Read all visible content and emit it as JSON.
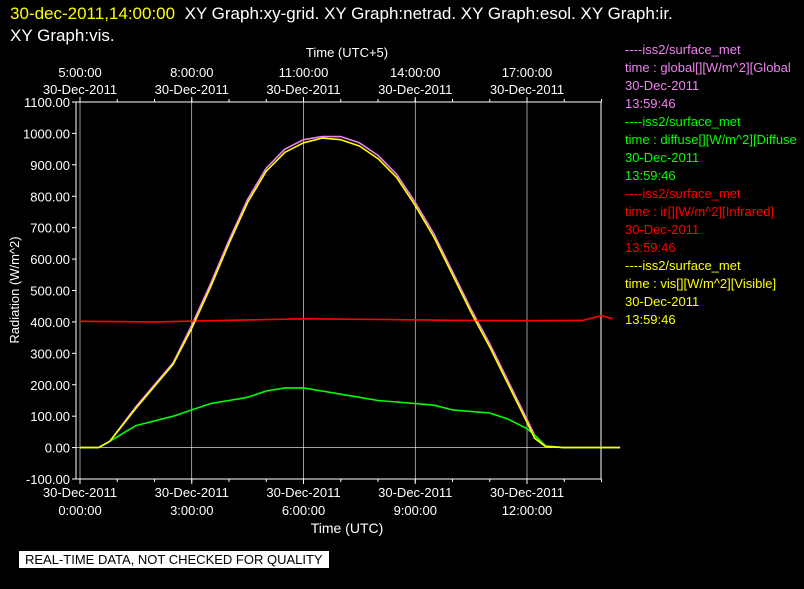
{
  "header": {
    "timestamp": "30-dec-2011,14:00:00",
    "graphs_line1": "XY Graph:xy-grid.  XY Graph:netrad.  XY Graph:esol.  XY Graph:ir.",
    "graphs_line2": "XY Graph:vis."
  },
  "legend": [
    {
      "source": "----iss2/surface_met",
      "field": "time : global[][W/m^2][Global",
      "date": "30-Dec-2011",
      "time": "13:59:46",
      "color": "#ee82ee"
    },
    {
      "source": "----iss2/surface_met",
      "field": "time : diffuse[][W/m^2][Diffuse",
      "date": "30-Dec-2011",
      "time": "13:59:46",
      "color": "#00ff00"
    },
    {
      "source": "----iss2/surface_met",
      "field": "time : ir[][W/m^2][Infrared]",
      "date": "30-Dec-2011",
      "time": "13:59:46",
      "color": "#ff0000"
    },
    {
      "source": "----iss2/surface_met",
      "field": "time : vis[][W/m^2][Visible]",
      "date": "30-Dec-2011",
      "time": "13:59:46",
      "color": "#ffff00"
    }
  ],
  "disclaimer": "REAL-TIME DATA, NOT CHECKED FOR QUALITY",
  "chart_data": {
    "type": "line",
    "ylabel": "Radiation (W/m^2)",
    "xlabel_bottom": "Time (UTC)",
    "xlabel_top": "Time (UTC+5)",
    "ylim": [
      -100,
      1100
    ],
    "xlim_hours_utc": [
      0,
      14.5
    ],
    "yticks": [
      "-100.00",
      "0.00",
      "100.00",
      "200.00",
      "300.00",
      "400.00",
      "500.00",
      "600.00",
      "700.00",
      "800.00",
      "900.00",
      "1000.00",
      "1100.00"
    ],
    "bottom_ticks": [
      {
        "date": "30-Dec-2011",
        "time": "0:00:00"
      },
      {
        "date": "30-Dec-2011",
        "time": "3:00:00"
      },
      {
        "date": "30-Dec-2011",
        "time": "6:00:00"
      },
      {
        "date": "30-Dec-2011",
        "time": "9:00:00"
      },
      {
        "date": "30-Dec-2011",
        "time": "12:00:00"
      }
    ],
    "top_ticks": [
      {
        "time": "5:00:00",
        "date": "30-Dec-2011"
      },
      {
        "time": "8:00:00",
        "date": "30-Dec-2011"
      },
      {
        "time": "11:00:00",
        "date": "30-Dec-2011"
      },
      {
        "time": "14:00:00",
        "date": "30-Dec-2011"
      },
      {
        "time": "17:00:00",
        "date": "30-Dec-2011"
      }
    ],
    "grid": true,
    "series": [
      {
        "name": "global",
        "color": "#ee82ee",
        "x": [
          0,
          0.5,
          0.8,
          1.5,
          2.5,
          3.0,
          3.5,
          4.0,
          4.5,
          5.0,
          5.5,
          6.0,
          6.5,
          7.0,
          7.5,
          8.0,
          8.5,
          9.0,
          9.5,
          10.0,
          10.5,
          11.0,
          11.5,
          12.0,
          12.2,
          12.5,
          13.0,
          14.5
        ],
        "y": [
          0,
          0,
          20,
          130,
          270,
          390,
          520,
          660,
          790,
          890,
          950,
          980,
          990,
          990,
          970,
          930,
          870,
          780,
          680,
          560,
          440,
          330,
          210,
          90,
          40,
          5,
          0,
          0
        ]
      },
      {
        "name": "diffuse",
        "color": "#00ff00",
        "x": [
          0,
          0.5,
          0.8,
          1.5,
          2.5,
          3.0,
          3.5,
          4.0,
          4.5,
          5.0,
          5.5,
          6.0,
          6.5,
          7.0,
          7.5,
          8.0,
          8.5,
          9.0,
          9.5,
          10.0,
          10.5,
          11.0,
          11.5,
          12.0,
          12.2,
          12.5,
          13.0,
          14.5
        ],
        "y": [
          0,
          0,
          20,
          70,
          100,
          120,
          140,
          150,
          160,
          180,
          190,
          190,
          180,
          170,
          160,
          150,
          145,
          140,
          135,
          120,
          115,
          110,
          90,
          60,
          40,
          5,
          0,
          0
        ]
      },
      {
        "name": "ir",
        "color": "#ff0000",
        "x": [
          0,
          2.0,
          4.0,
          6.0,
          8.0,
          10.0,
          12.0,
          13.5,
          14.0,
          14.3
        ],
        "y": [
          402,
          400,
          405,
          410,
          408,
          405,
          404,
          405,
          420,
          410
        ]
      },
      {
        "name": "vis",
        "color": "#ffff00",
        "x": [
          0,
          0.5,
          0.8,
          1.5,
          2.5,
          3.0,
          3.5,
          4.0,
          4.5,
          5.0,
          5.5,
          6.0,
          6.5,
          7.0,
          7.5,
          8.0,
          8.5,
          9.0,
          9.5,
          10.0,
          10.5,
          11.0,
          11.5,
          12.0,
          12.2,
          12.5,
          13.0,
          14.5
        ],
        "y": [
          0,
          0,
          20,
          125,
          265,
          380,
          510,
          650,
          780,
          880,
          940,
          970,
          985,
          980,
          960,
          920,
          860,
          770,
          670,
          550,
          430,
          320,
          200,
          80,
          30,
          3,
          0,
          0
        ]
      }
    ]
  }
}
